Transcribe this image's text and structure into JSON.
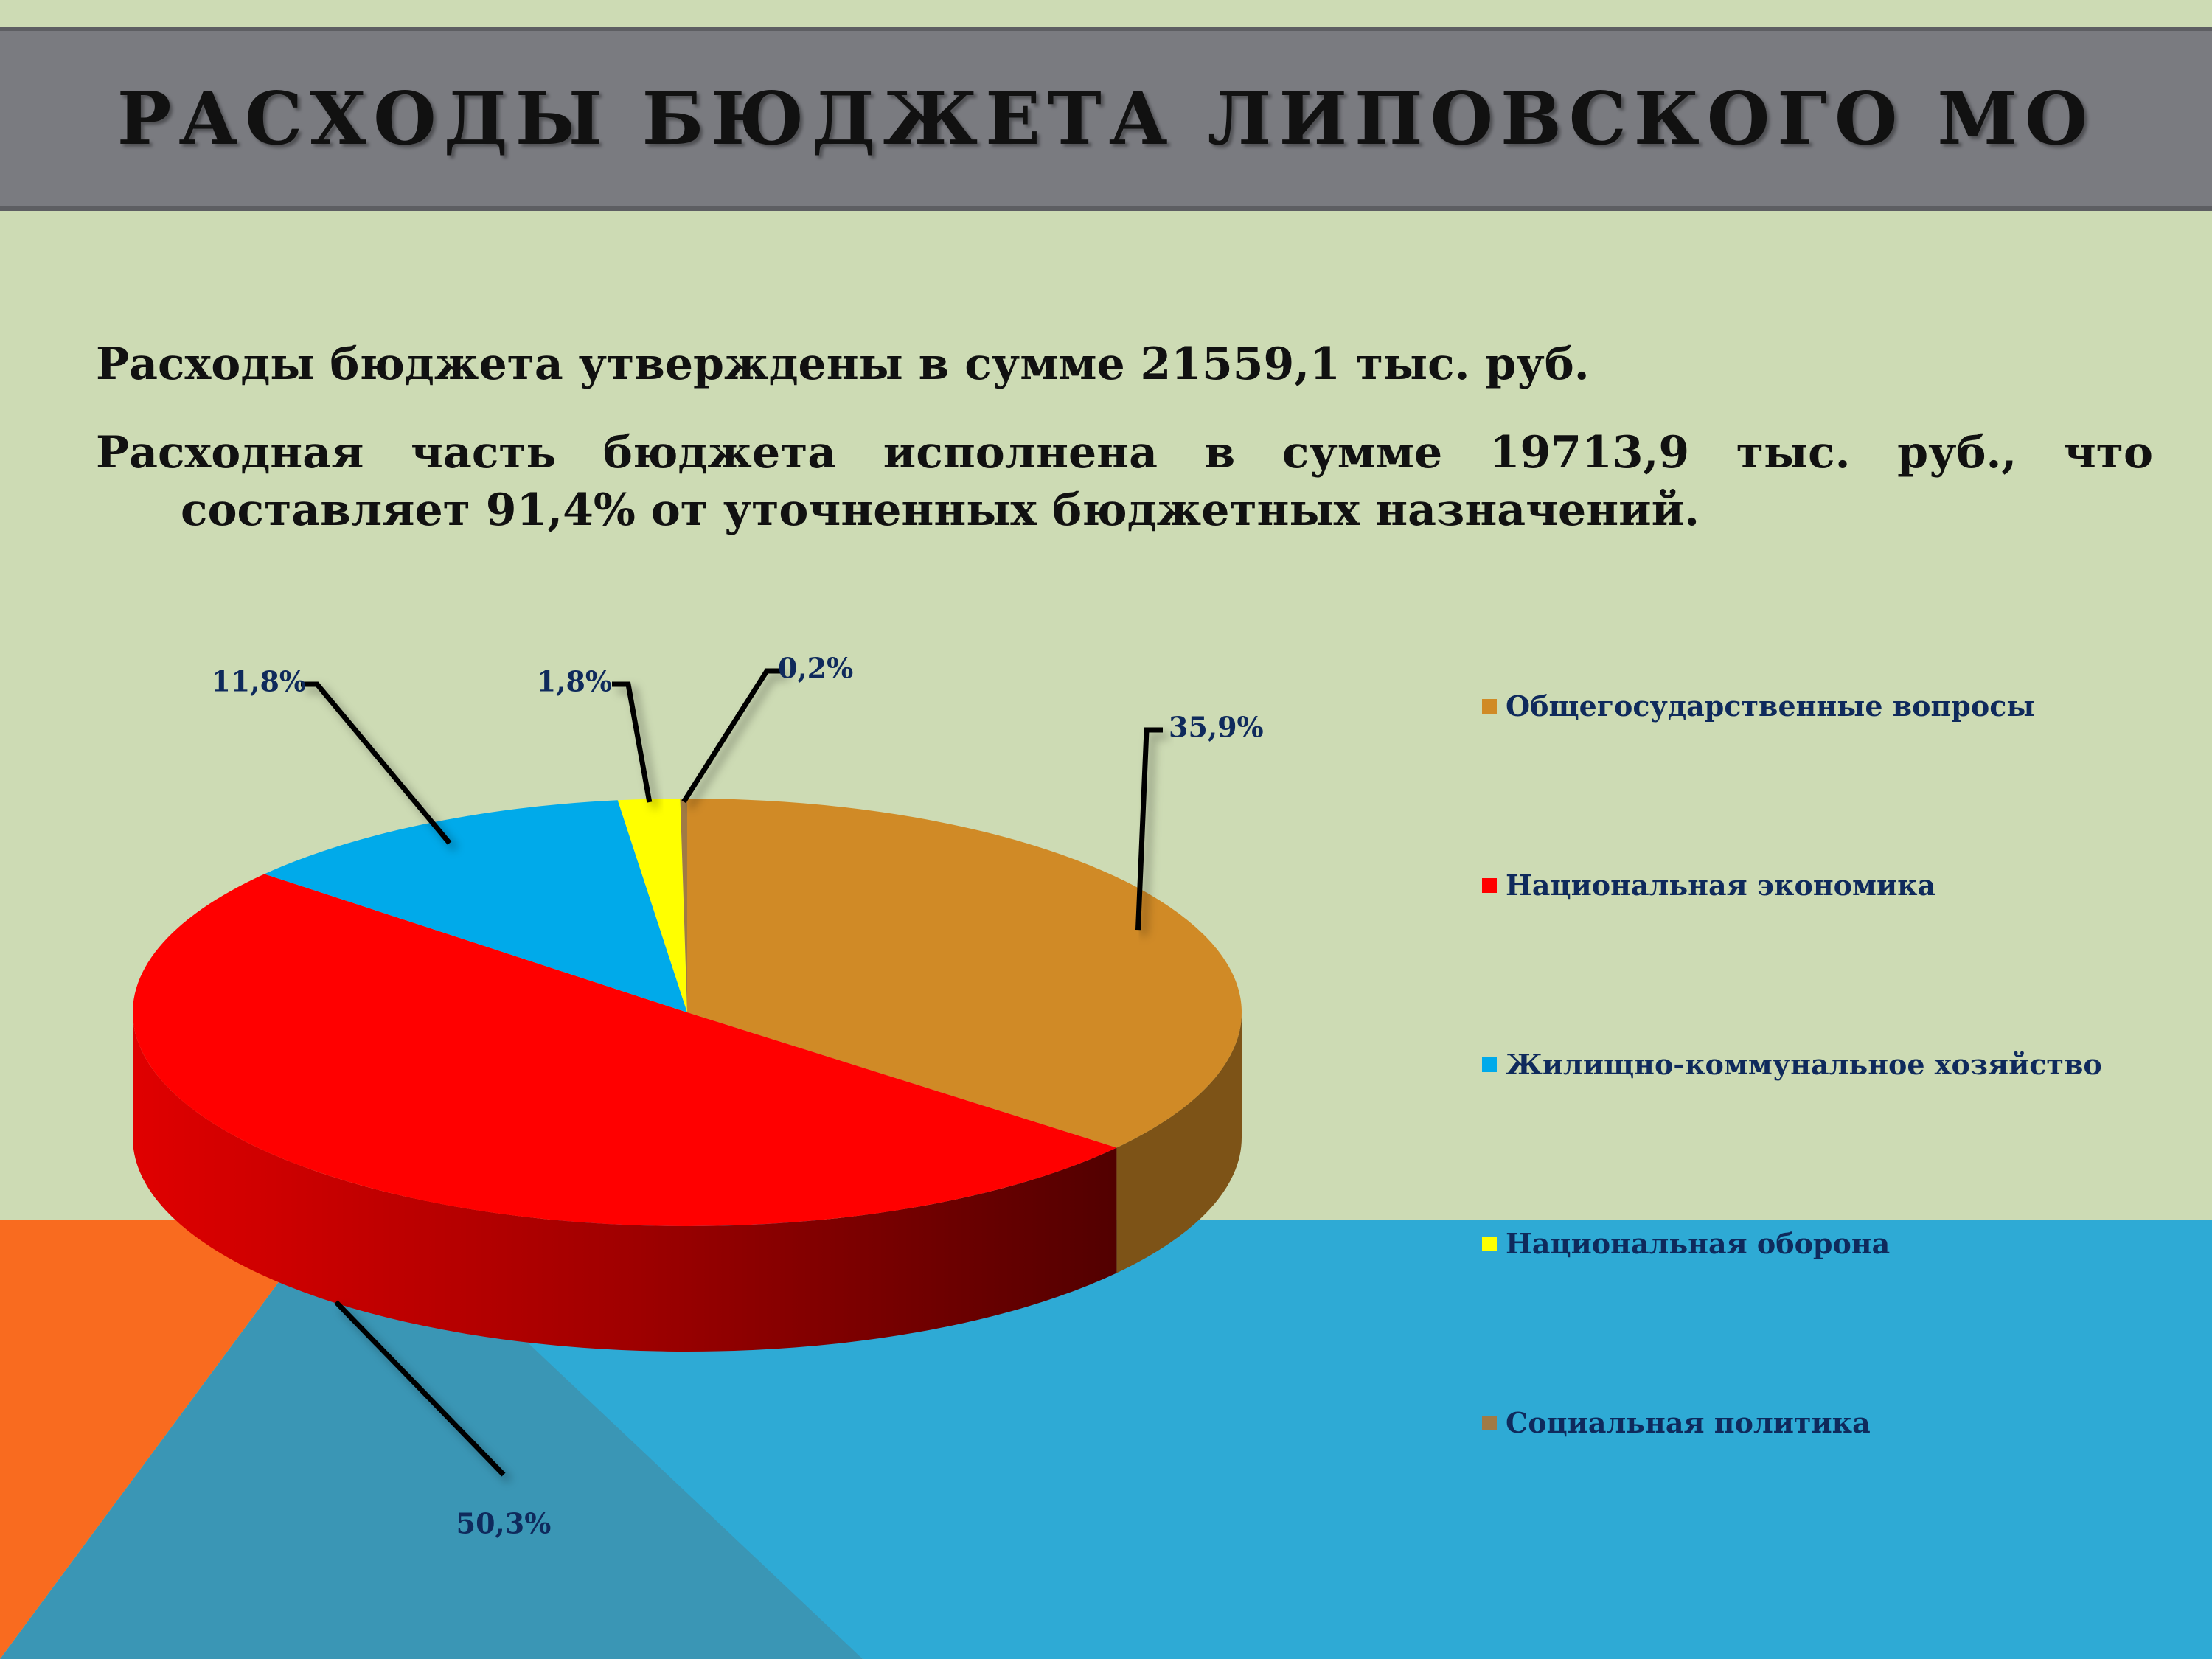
{
  "title": "РАСХОДЫ БЮДЖЕТА ЛИПОВСКОГО МО",
  "paragraphs": [
    "Расходы бюджета утверждены в сумме 21559,1 тыс. руб.",
    "Расходная часть бюджета исполнена в сумме 19713,9 тыс. руб., что составляет 91,4% от уточненных бюджетных назначений."
  ],
  "colors": {
    "background": "#cddbb4",
    "title_bar": "#7a7b80",
    "orange_decor": "#f96b1f",
    "blue_decor": "#2eaad5",
    "blue_decor_dark": "#3a96b5",
    "label_text": "#0f2a5c"
  },
  "chart_data": {
    "type": "pie",
    "style": "3d",
    "legend_position": "right",
    "slices": [
      {
        "name": "Общегосударственные вопросы",
        "value": 35.9,
        "label": "35,9%",
        "color": "#d08a26"
      },
      {
        "name": "Национальная экономика",
        "value": 50.3,
        "label": "50,3%",
        "color": "#ff0000"
      },
      {
        "name": "Жилищно-коммунальное хозяйство",
        "value": 11.8,
        "label": "11,8%",
        "color": "#00aaea"
      },
      {
        "name": "Национальная оборона",
        "value": 1.8,
        "label": "1,8%",
        "color": "#ffff00"
      },
      {
        "name": "Социальная политика",
        "value": 0.2,
        "label": "0,2%",
        "color": "#a07a45"
      }
    ]
  }
}
